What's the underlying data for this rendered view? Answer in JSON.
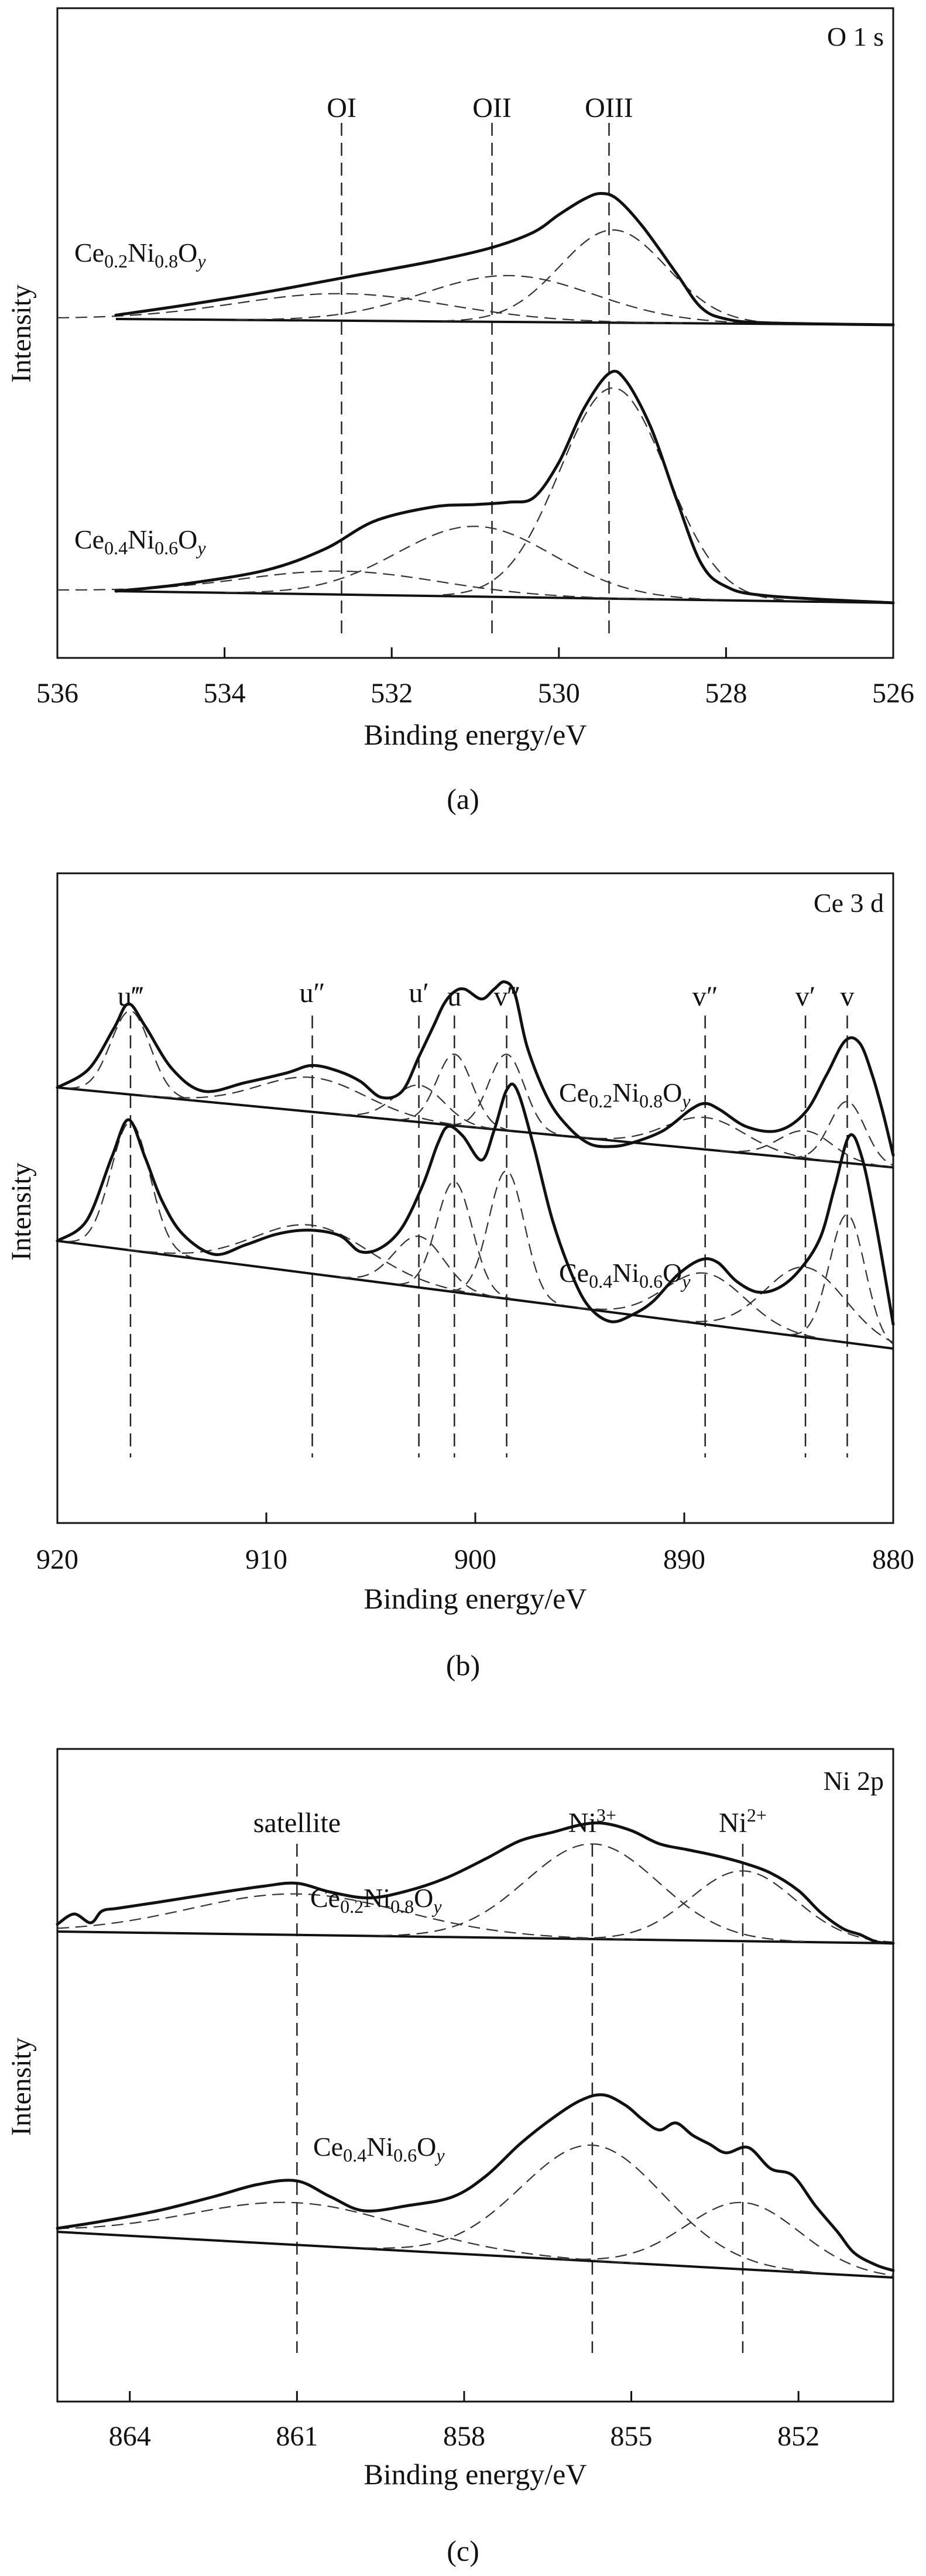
{
  "figure": {
    "subpanel_labels": [
      "(a)",
      "(b)",
      "(c)"
    ]
  },
  "chart_data": [
    {
      "type": "line",
      "panel_label": "(a)",
      "title": "O 1 s",
      "xlabel": "Binding energy/eV",
      "ylabel": "Intensity",
      "x_reversed": true,
      "xlim": [
        536,
        526
      ],
      "xticks": [
        536,
        534,
        532,
        530,
        528,
        526
      ],
      "reference_lines": [
        {
          "label": "OI",
          "x": 532.6
        },
        {
          "label": "OII",
          "x": 530.8
        },
        {
          "label": "OIII",
          "x": 529.4
        }
      ],
      "samples": [
        {
          "name": "Ce0.2Ni0.8Oy",
          "formula": [
            "Ce",
            "0.2",
            "Ni",
            "0.8",
            "O",
            "y"
          ],
          "baseline": {
            "start": [
              535.3,
              0.0
            ],
            "end": [
              526.0,
              -0.03
            ]
          },
          "envelope_x": [
            535.3,
            534.5,
            533.5,
            532.5,
            531.5,
            530.8,
            530.3,
            530.0,
            529.7,
            529.5,
            529.3,
            529.0,
            528.6,
            528.3,
            528.0,
            527.5,
            526.0
          ],
          "envelope_y": [
            0.02,
            0.07,
            0.14,
            0.22,
            0.3,
            0.37,
            0.45,
            0.54,
            0.62,
            0.65,
            0.62,
            0.48,
            0.24,
            0.06,
            0.0,
            -0.02,
            -0.03
          ],
          "components": [
            {
              "label": "OI",
              "center": 532.6,
              "height": 0.14,
              "fwhm": 3.0
            },
            {
              "label": "OII",
              "center": 530.6,
              "height": 0.24,
              "fwhm": 2.4
            },
            {
              "label": "OIII",
              "center": 529.35,
              "height": 0.48,
              "fwhm": 1.5
            }
          ]
        },
        {
          "name": "Ce0.4Ni0.6Oy",
          "formula": [
            "Ce",
            "0.4",
            "Ni",
            "0.6",
            "O",
            "y"
          ],
          "baseline": {
            "start": [
              535.3,
              0.0
            ],
            "end": [
              526.0,
              -0.05
            ]
          },
          "envelope_x": [
            535.3,
            534.5,
            533.5,
            532.8,
            532.2,
            531.5,
            531.0,
            530.6,
            530.3,
            530.0,
            529.7,
            529.4,
            529.2,
            528.9,
            528.6,
            528.3,
            528.0,
            527.5,
            526.0
          ],
          "envelope_y": [
            0.0,
            0.03,
            0.09,
            0.18,
            0.3,
            0.36,
            0.37,
            0.38,
            0.4,
            0.55,
            0.78,
            0.93,
            0.9,
            0.7,
            0.4,
            0.12,
            0.02,
            -0.02,
            -0.05
          ],
          "components": [
            {
              "label": "OI",
              "center": 532.6,
              "height": 0.1,
              "fwhm": 2.8
            },
            {
              "label": "OII",
              "center": 531.0,
              "height": 0.3,
              "fwhm": 2.2
            },
            {
              "label": "OIII",
              "center": 529.35,
              "height": 0.9,
              "fwhm": 1.5
            }
          ]
        }
      ]
    },
    {
      "type": "line",
      "panel_label": "(b)",
      "title": "Ce 3 d",
      "xlabel": "Binding energy/eV",
      "ylabel": "Intensity",
      "x_reversed": true,
      "xlim": [
        920,
        880
      ],
      "xticks": [
        920,
        910,
        900,
        890,
        880
      ],
      "reference_lines": [
        {
          "label": "u‴",
          "x": 916.5
        },
        {
          "label": "u″",
          "x": 907.8
        },
        {
          "label": "u′",
          "x": 902.7
        },
        {
          "label": "u",
          "x": 901.0
        },
        {
          "label": "v‴",
          "x": 898.5
        },
        {
          "label": "v″",
          "x": 889.0
        },
        {
          "label": "v′",
          "x": 884.2
        },
        {
          "label": "v",
          "x": 882.2
        }
      ],
      "samples": [
        {
          "name": "Ce0.2Ni0.8Oy",
          "formula": [
            "Ce",
            "0.2",
            "Ni",
            "0.8",
            "O",
            "y"
          ],
          "baseline": {
            "start": [
              920,
              0.0
            ],
            "end": [
              880,
              -0.65
            ]
          },
          "envelope_x": [
            920,
            918.5,
            917.3,
            916.6,
            915.8,
            914.5,
            913,
            911,
            909,
            907.8,
            906.5,
            905.5,
            904.5,
            903.5,
            902.7,
            902,
            901.5,
            901.0,
            900.5,
            899.7,
            899.1,
            898.6,
            898.1,
            897.5,
            896.5,
            895.5,
            894.5,
            893.5,
            892.5,
            891,
            889.7,
            889.0,
            888.3,
            887,
            885.5,
            884.2,
            883.2,
            882.3,
            881.6,
            881,
            880.5,
            880
          ],
          "envelope_y": [
            0.0,
            0.15,
            0.48,
            0.68,
            0.5,
            0.15,
            -0.03,
            0.04,
            0.12,
            0.18,
            0.13,
            0.05,
            -0.08,
            -0.03,
            0.25,
            0.5,
            0.68,
            0.78,
            0.8,
            0.72,
            0.8,
            0.86,
            0.76,
            0.32,
            -0.1,
            -0.33,
            -0.46,
            -0.48,
            -0.45,
            -0.35,
            -0.18,
            -0.13,
            -0.18,
            -0.32,
            -0.35,
            -0.2,
            0.1,
            0.38,
            0.36,
            0.1,
            -0.2,
            -0.55
          ],
          "components": [
            {
              "label": "u‴",
              "center": 916.5,
              "height": 0.68,
              "fwhm": 2.2
            },
            {
              "label": "u″",
              "center": 907.8,
              "height": 0.28,
              "fwhm": 6.0
            },
            {
              "label": "u′",
              "center": 902.7,
              "height": 0.3,
              "fwhm": 2.8
            },
            {
              "label": "u",
              "center": 901.0,
              "height": 0.58,
              "fwhm": 2.0
            },
            {
              "label": "v‴",
              "center": 898.5,
              "height": 0.62,
              "fwhm": 2.0
            },
            {
              "label": "v″",
              "center": 889.0,
              "height": 0.26,
              "fwhm": 4.5
            },
            {
              "label": "v′",
              "center": 884.2,
              "height": 0.23,
              "fwhm": 3.0
            },
            {
              "label": "v",
              "center": 882.2,
              "height": 0.5,
              "fwhm": 2.0
            }
          ]
        },
        {
          "name": "Ce0.4Ni0.6Oy",
          "formula": [
            "Ce",
            "0.4",
            "Ni",
            "0.6",
            "O",
            "y"
          ],
          "baseline": {
            "start": [
              920,
              0.0
            ],
            "end": [
              880,
              -0.8
            ]
          },
          "envelope_x": [
            920,
            918.6,
            917.4,
            916.6,
            915.8,
            915,
            914,
            912.5,
            911,
            909.5,
            908,
            906.5,
            905.5,
            904.5,
            903.5,
            902.5,
            901.8,
            901.3,
            900.6,
            899.7,
            899.1,
            898.5,
            898,
            897.2,
            896.3,
            895.3,
            894.5,
            893.5,
            892.5,
            891.5,
            890.3,
            889.2,
            888.4,
            887.5,
            886.5,
            885.5,
            884.5,
            883.5,
            882.8,
            882.1,
            881.5,
            880.8,
            880
          ],
          "envelope_y": [
            0.0,
            0.15,
            0.62,
            0.9,
            0.62,
            0.3,
            0.05,
            -0.1,
            -0.03,
            0.05,
            0.08,
            0.04,
            -0.08,
            -0.05,
            0.1,
            0.42,
            0.72,
            0.85,
            0.78,
            0.6,
            0.82,
            1.12,
            1.12,
            0.7,
            0.15,
            -0.28,
            -0.5,
            -0.6,
            -0.55,
            -0.45,
            -0.25,
            -0.14,
            -0.16,
            -0.3,
            -0.38,
            -0.35,
            -0.22,
            0.02,
            0.4,
            0.78,
            0.62,
            0.1,
            -0.62
          ],
          "components": [
            {
              "label": "u‴",
              "center": 916.5,
              "height": 0.95,
              "fwhm": 2.2
            },
            {
              "label": "u″",
              "center": 907.8,
              "height": 0.36,
              "fwhm": 6.5
            },
            {
              "label": "u′",
              "center": 902.7,
              "height": 0.38,
              "fwhm": 2.8
            },
            {
              "label": "u",
              "center": 901.0,
              "height": 0.82,
              "fwhm": 2.0
            },
            {
              "label": "v‴",
              "center": 898.5,
              "height": 0.95,
              "fwhm": 2.0
            },
            {
              "label": "v″",
              "center": 889.0,
              "height": 0.38,
              "fwhm": 4.5
            },
            {
              "label": "v′",
              "center": 884.2,
              "height": 0.52,
              "fwhm": 4.5
            },
            {
              "label": "v",
              "center": 882.2,
              "height": 0.95,
              "fwhm": 2.0
            }
          ]
        }
      ]
    },
    {
      "type": "line",
      "panel_label": "(c)",
      "title": "Ni 2p",
      "xlabel": "Binding energy/eV",
      "ylabel": "Intensity",
      "x_reversed": true,
      "xlim": [
        865.3,
        850.3
      ],
      "xticks": [
        864,
        861,
        858,
        855,
        852
      ],
      "reference_lines": [
        {
          "label": "satellite",
          "x": 861.0
        },
        {
          "label": "Ni3+",
          "text": "Ni",
          "sup": "3+",
          "x": 855.7
        },
        {
          "label": "Ni2+",
          "text": "Ni",
          "sup": "2+",
          "x": 853.0
        }
      ],
      "samples": [
        {
          "name": "Ce0.2Ni0.8Oy",
          "formula": [
            "Ce",
            "0.2",
            "Ni",
            "0.8",
            "O",
            "y"
          ],
          "baseline": {
            "start": [
              865.3,
              0.0
            ],
            "end": [
              850.3,
              -0.08
            ]
          },
          "envelope_x": [
            865.3,
            865.0,
            864.7,
            864.5,
            864.2,
            863.5,
            862.5,
            861.6,
            861.0,
            860.4,
            859.7,
            859.0,
            858.3,
            857.6,
            857.0,
            856.4,
            855.9,
            855.5,
            855.0,
            854.5,
            854.0,
            853.5,
            853.0,
            852.5,
            852.0,
            851.6,
            851.2,
            850.9,
            850.6,
            850.3
          ],
          "envelope_y": [
            0.05,
            0.12,
            0.06,
            0.14,
            0.16,
            0.2,
            0.26,
            0.31,
            0.33,
            0.27,
            0.23,
            0.28,
            0.37,
            0.5,
            0.62,
            0.68,
            0.73,
            0.74,
            0.69,
            0.6,
            0.56,
            0.52,
            0.47,
            0.4,
            0.28,
            0.13,
            0.02,
            -0.02,
            -0.07,
            -0.08
          ],
          "components": [
            {
              "label": "satellite",
              "center": 861.0,
              "height": 0.28,
              "fwhm": 4.5
            },
            {
              "label": "Ni3+",
              "center": 855.7,
              "height": 0.65,
              "fwhm": 2.8
            },
            {
              "label": "Ni2+",
              "center": 853.0,
              "height": 0.48,
              "fwhm": 2.2
            }
          ]
        },
        {
          "name": "Ce0.4Ni0.6Oy",
          "formula": [
            "Ce",
            "0.4",
            "Ni",
            "0.6",
            "O",
            "y"
          ],
          "baseline": {
            "start": [
              865.3,
              0.0
            ],
            "end": [
              850.3,
              -0.26
            ]
          },
          "envelope_x": [
            865.3,
            864.5,
            863.5,
            862.5,
            861.7,
            861.0,
            860.4,
            859.8,
            859.0,
            858.2,
            857.6,
            857.0,
            856.4,
            855.9,
            855.5,
            855.1,
            854.8,
            854.5,
            854.2,
            853.9,
            853.6,
            853.3,
            852.9,
            852.5,
            852.1,
            851.7,
            851.3,
            851.0,
            850.6,
            850.3
          ],
          "envelope_y": [
            0.02,
            0.06,
            0.12,
            0.2,
            0.27,
            0.29,
            0.2,
            0.12,
            0.15,
            0.2,
            0.32,
            0.5,
            0.65,
            0.75,
            0.78,
            0.72,
            0.64,
            0.58,
            0.62,
            0.55,
            0.5,
            0.45,
            0.48,
            0.36,
            0.32,
            0.15,
            0.0,
            -0.12,
            -0.19,
            -0.22
          ],
          "components": [
            {
              "label": "satellite",
              "center": 861.0,
              "height": 0.24,
              "fwhm": 4.5
            },
            {
              "label": "Ni3+",
              "center": 855.7,
              "height": 0.66,
              "fwhm": 3.0
            },
            {
              "label": "Ni2+",
              "center": 853.0,
              "height": 0.38,
              "fwhm": 2.4
            }
          ]
        }
      ]
    }
  ]
}
